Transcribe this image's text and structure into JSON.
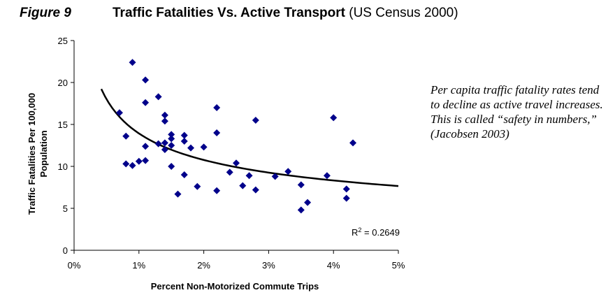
{
  "figure_label": "Figure 9",
  "title_main": "Traffic Fatalities Vs. Active Transport",
  "title_sub": "(US Census 2000)",
  "note_text": "Per capita traffic fatality rates tend to decline as active travel increases. This is called “safety in numbers,” (Jacobsen 2003)",
  "chart_data": {
    "type": "scatter",
    "xlabel": "Percent Non-Motorized Commute Trips",
    "ylabel_lines": [
      "Traffic Fatalities Per 100,000",
      "Population"
    ],
    "xlim": [
      0,
      5
    ],
    "ylim": [
      0,
      25
    ],
    "x_ticks": [
      0,
      1,
      2,
      3,
      4,
      5
    ],
    "x_tick_labels": [
      "0%",
      "1%",
      "2%",
      "3%",
      "4%",
      "5%"
    ],
    "y_ticks": [
      0,
      5,
      10,
      15,
      20,
      25
    ],
    "y_tick_labels": [
      "0",
      "5",
      "10",
      "15",
      "20",
      "25"
    ],
    "grid": false,
    "marker": "diamond",
    "marker_color": "#00008B",
    "trendline": {
      "type": "power",
      "r2_label": "R",
      "r2_sup": "2",
      "r2_value": " = 0.2649",
      "color": "#000000",
      "x_range": [
        0.42,
        5.0
      ]
    },
    "points": [
      {
        "x": 0.7,
        "y": 16.4
      },
      {
        "x": 0.8,
        "y": 13.6
      },
      {
        "x": 0.8,
        "y": 10.3
      },
      {
        "x": 0.9,
        "y": 22.4
      },
      {
        "x": 0.9,
        "y": 10.1
      },
      {
        "x": 1.0,
        "y": 10.6
      },
      {
        "x": 1.1,
        "y": 20.3
      },
      {
        "x": 1.1,
        "y": 17.6
      },
      {
        "x": 1.1,
        "y": 12.4
      },
      {
        "x": 1.1,
        "y": 10.7
      },
      {
        "x": 1.3,
        "y": 18.3
      },
      {
        "x": 1.3,
        "y": 12.7
      },
      {
        "x": 1.4,
        "y": 16.1
      },
      {
        "x": 1.4,
        "y": 15.4
      },
      {
        "x": 1.4,
        "y": 12.8
      },
      {
        "x": 1.4,
        "y": 12.0
      },
      {
        "x": 1.5,
        "y": 13.8
      },
      {
        "x": 1.5,
        "y": 13.3
      },
      {
        "x": 1.5,
        "y": 12.5
      },
      {
        "x": 1.5,
        "y": 10.0
      },
      {
        "x": 1.6,
        "y": 6.7
      },
      {
        "x": 1.7,
        "y": 13.7
      },
      {
        "x": 1.7,
        "y": 13.0
      },
      {
        "x": 1.7,
        "y": 9.0
      },
      {
        "x": 1.8,
        "y": 12.2
      },
      {
        "x": 1.9,
        "y": 7.6
      },
      {
        "x": 2.0,
        "y": 12.3
      },
      {
        "x": 2.2,
        "y": 17.0
      },
      {
        "x": 2.2,
        "y": 14.0
      },
      {
        "x": 2.2,
        "y": 7.1
      },
      {
        "x": 2.4,
        "y": 9.3
      },
      {
        "x": 2.5,
        "y": 10.4
      },
      {
        "x": 2.6,
        "y": 7.7
      },
      {
        "x": 2.7,
        "y": 8.9
      },
      {
        "x": 2.8,
        "y": 15.5
      },
      {
        "x": 2.8,
        "y": 7.2
      },
      {
        "x": 3.1,
        "y": 8.8
      },
      {
        "x": 3.3,
        "y": 9.4
      },
      {
        "x": 3.5,
        "y": 7.8
      },
      {
        "x": 3.5,
        "y": 4.8
      },
      {
        "x": 3.6,
        "y": 5.7
      },
      {
        "x": 3.9,
        "y": 8.9
      },
      {
        "x": 4.0,
        "y": 15.8
      },
      {
        "x": 4.2,
        "y": 7.3
      },
      {
        "x": 4.2,
        "y": 6.2
      },
      {
        "x": 4.3,
        "y": 12.8
      }
    ]
  }
}
